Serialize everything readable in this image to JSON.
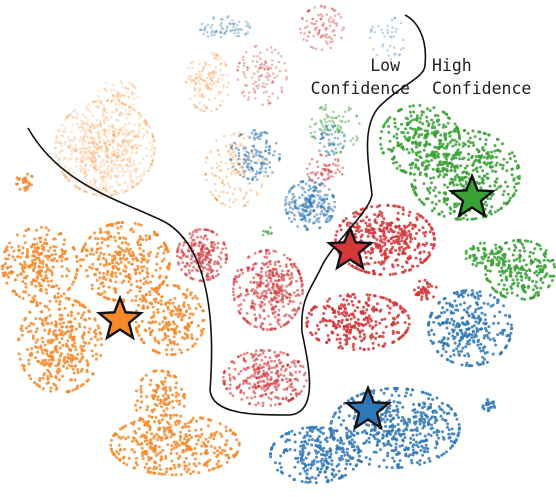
{
  "chart_data": {
    "type": "scatter",
    "title": "",
    "xlabel": "",
    "ylabel": "",
    "grid": false,
    "legend": "none",
    "annotations": [
      {
        "name": "low-confidence",
        "lines": [
          "Low",
          "Confidence"
        ]
      },
      {
        "name": "high-confidence",
        "lines": [
          "High",
          "Confidence"
        ]
      }
    ],
    "colors": {
      "blue": "#2f78b8",
      "orange": "#f7892a",
      "green": "#38a035",
      "red": "#d4373a",
      "star_outline": "#111111",
      "boundary": "#111111"
    },
    "series": [
      {
        "color_key": "orange",
        "role": "low-confidence",
        "clusters": [
          {
            "cx": 105,
            "cy": 148,
            "rx": 50,
            "ry": 48,
            "n": 700,
            "alpha": 0.22,
            "r": 1.4
          },
          {
            "cx": 118,
            "cy": 95,
            "rx": 20,
            "ry": 15,
            "n": 60,
            "alpha": 0.22,
            "r": 1.3
          },
          {
            "cx": 208,
            "cy": 82,
            "rx": 22,
            "ry": 30,
            "n": 140,
            "alpha": 0.28,
            "r": 1.3
          },
          {
            "cx": 235,
            "cy": 170,
            "rx": 30,
            "ry": 38,
            "n": 140,
            "alpha": 0.35,
            "r": 1.3
          }
        ]
      },
      {
        "color_key": "orange",
        "role": "high-confidence",
        "clusters": [
          {
            "cx": 40,
            "cy": 265,
            "rx": 38,
            "ry": 38,
            "n": 260,
            "alpha": 0.85,
            "r": 1.5
          },
          {
            "cx": 25,
            "cy": 182,
            "rx": 9,
            "ry": 9,
            "n": 25,
            "alpha": 0.85,
            "r": 1.5
          },
          {
            "cx": 125,
            "cy": 262,
            "rx": 45,
            "ry": 40,
            "n": 320,
            "alpha": 0.85,
            "r": 1.5
          },
          {
            "cx": 170,
            "cy": 320,
            "rx": 35,
            "ry": 35,
            "n": 230,
            "alpha": 0.85,
            "r": 1.5
          },
          {
            "cx": 60,
            "cy": 345,
            "rx": 42,
            "ry": 48,
            "n": 360,
            "alpha": 0.85,
            "r": 1.5
          },
          {
            "cx": 160,
            "cy": 400,
            "rx": 25,
            "ry": 30,
            "n": 120,
            "alpha": 0.85,
            "r": 1.5
          },
          {
            "cx": 175,
            "cy": 445,
            "rx": 65,
            "ry": 30,
            "n": 360,
            "alpha": 0.85,
            "r": 1.5
          }
        ]
      },
      {
        "color_key": "red",
        "role": "low-confidence",
        "clusters": [
          {
            "cx": 322,
            "cy": 28,
            "rx": 22,
            "ry": 22,
            "n": 90,
            "alpha": 0.4,
            "r": 1.3
          },
          {
            "cx": 262,
            "cy": 75,
            "rx": 25,
            "ry": 30,
            "n": 110,
            "alpha": 0.35,
            "r": 1.3
          },
          {
            "cx": 202,
            "cy": 255,
            "rx": 25,
            "ry": 26,
            "n": 220,
            "alpha": 0.6,
            "r": 1.4
          },
          {
            "cx": 268,
            "cy": 290,
            "rx": 35,
            "ry": 40,
            "n": 380,
            "alpha": 0.6,
            "r": 1.4
          },
          {
            "cx": 265,
            "cy": 378,
            "rx": 42,
            "ry": 28,
            "n": 300,
            "alpha": 0.6,
            "r": 1.4
          },
          {
            "cx": 325,
            "cy": 170,
            "rx": 18,
            "ry": 16,
            "n": 60,
            "alpha": 0.5,
            "r": 1.3
          }
        ]
      },
      {
        "color_key": "red",
        "role": "high-confidence",
        "clusters": [
          {
            "cx": 385,
            "cy": 240,
            "rx": 50,
            "ry": 35,
            "n": 420,
            "alpha": 0.85,
            "r": 1.5
          },
          {
            "cx": 358,
            "cy": 322,
            "rx": 52,
            "ry": 28,
            "n": 300,
            "alpha": 0.85,
            "r": 1.5
          },
          {
            "cx": 425,
            "cy": 290,
            "rx": 12,
            "ry": 10,
            "n": 40,
            "alpha": 0.85,
            "r": 1.5
          }
        ]
      },
      {
        "color_key": "blue",
        "role": "low-confidence",
        "clusters": [
          {
            "cx": 225,
            "cy": 28,
            "rx": 25,
            "ry": 12,
            "n": 70,
            "alpha": 0.35,
            "r": 1.3
          },
          {
            "cx": 388,
            "cy": 38,
            "rx": 18,
            "ry": 22,
            "n": 40,
            "alpha": 0.3,
            "r": 1.3
          },
          {
            "cx": 255,
            "cy": 155,
            "rx": 25,
            "ry": 25,
            "n": 130,
            "alpha": 0.55,
            "r": 1.3
          },
          {
            "cx": 310,
            "cy": 205,
            "rx": 25,
            "ry": 25,
            "n": 220,
            "alpha": 0.55,
            "r": 1.4
          },
          {
            "cx": 330,
            "cy": 140,
            "rx": 15,
            "ry": 15,
            "n": 50,
            "alpha": 0.5,
            "r": 1.3
          }
        ]
      },
      {
        "color_key": "blue",
        "role": "high-confidence",
        "clusters": [
          {
            "cx": 470,
            "cy": 328,
            "rx": 42,
            "ry": 38,
            "n": 300,
            "alpha": 0.85,
            "r": 1.5
          },
          {
            "cx": 395,
            "cy": 428,
            "rx": 65,
            "ry": 40,
            "n": 500,
            "alpha": 0.85,
            "r": 1.5
          },
          {
            "cx": 315,
            "cy": 455,
            "rx": 45,
            "ry": 28,
            "n": 250,
            "alpha": 0.85,
            "r": 1.5
          },
          {
            "cx": 490,
            "cy": 405,
            "rx": 8,
            "ry": 6,
            "n": 20,
            "alpha": 0.85,
            "r": 1.5
          }
        ]
      },
      {
        "color_key": "green",
        "role": "low-confidence",
        "clusters": [
          {
            "cx": 335,
            "cy": 128,
            "rx": 25,
            "ry": 25,
            "n": 80,
            "alpha": 0.45,
            "r": 1.3
          },
          {
            "cx": 268,
            "cy": 232,
            "rx": 6,
            "ry": 5,
            "n": 10,
            "alpha": 0.6,
            "r": 1.3
          }
        ]
      },
      {
        "color_key": "green",
        "role": "high-confidence",
        "clusters": [
          {
            "cx": 420,
            "cy": 140,
            "rx": 40,
            "ry": 35,
            "n": 260,
            "alpha": 0.85,
            "r": 1.5
          },
          {
            "cx": 465,
            "cy": 175,
            "rx": 55,
            "ry": 45,
            "n": 420,
            "alpha": 0.85,
            "r": 1.5
          },
          {
            "cx": 520,
            "cy": 270,
            "rx": 35,
            "ry": 30,
            "n": 230,
            "alpha": 0.85,
            "r": 1.5
          },
          {
            "cx": 485,
            "cy": 255,
            "rx": 20,
            "ry": 12,
            "n": 60,
            "alpha": 0.85,
            "r": 1.5
          }
        ]
      }
    ],
    "prototypes": [
      {
        "name": "orange-star",
        "color_key": "orange",
        "x": 120,
        "y": 320
      },
      {
        "name": "red-star",
        "color_key": "red",
        "x": 350,
        "y": 250
      },
      {
        "name": "green-star",
        "color_key": "green",
        "x": 472,
        "y": 198
      },
      {
        "name": "blue-star",
        "color_key": "blue",
        "x": 368,
        "y": 410
      }
    ]
  }
}
